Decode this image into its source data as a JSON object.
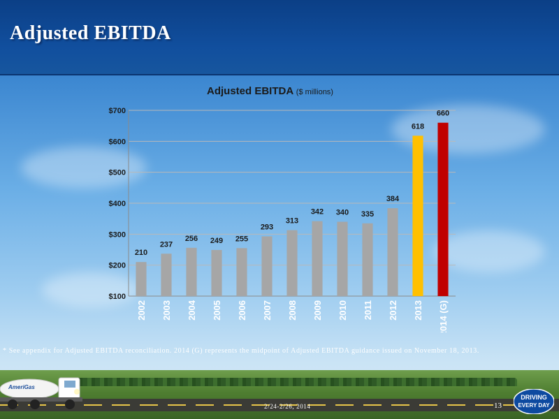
{
  "slide": {
    "title": "Adjusted EBITDA",
    "footnote": "* See appendix for Adjusted EBITDA reconciliation. 2014 (G) represents the midpoint of Adjusted EBITDA guidance issued on November 18, 2013.",
    "date": "2/24-2/26, 2014",
    "page_number": "13",
    "logo_text": "AmeriGas",
    "badge_line1": "DRIVING",
    "badge_line2": "EVERY DAY"
  },
  "chart_data": {
    "type": "bar",
    "title": "Adjusted EBITDA",
    "title_unit": "($ millions)",
    "categories": [
      "2002",
      "2003",
      "2004",
      "2005",
      "2006",
      "2007",
      "2008",
      "2009",
      "2010",
      "2011",
      "2012",
      "2013",
      "2014 (G)"
    ],
    "values": [
      210,
      237,
      256,
      249,
      255,
      293,
      313,
      342,
      340,
      335,
      384,
      618,
      660
    ],
    "bar_colors": [
      "#a6a6a6",
      "#a6a6a6",
      "#a6a6a6",
      "#a6a6a6",
      "#a6a6a6",
      "#a6a6a6",
      "#a6a6a6",
      "#a6a6a6",
      "#a6a6a6",
      "#a6a6a6",
      "#a6a6a6",
      "#ffc000",
      "#c00000"
    ],
    "yticks": [
      "$100",
      "$200",
      "$300",
      "$400",
      "$500",
      "$600",
      "$700"
    ],
    "ylim": [
      100,
      700
    ],
    "grid": true,
    "xlabel": "",
    "ylabel": ""
  }
}
